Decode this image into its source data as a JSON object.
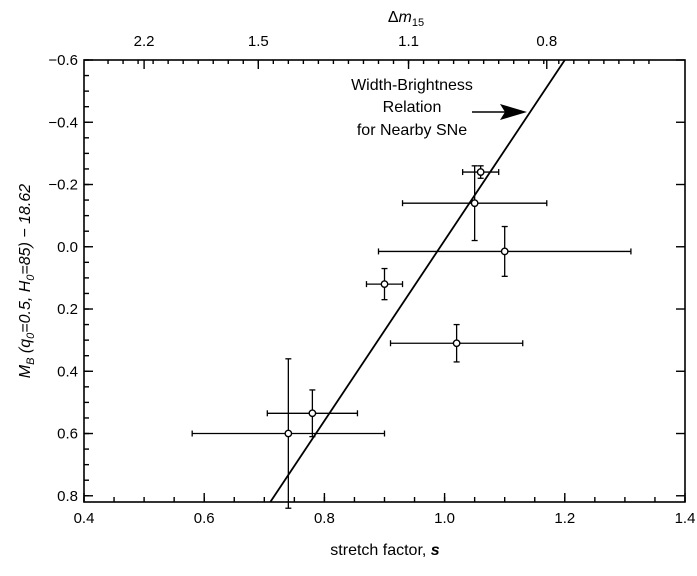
{
  "chart_data": {
    "type": "scatter",
    "title": "",
    "xlabel": {
      "text": "stretch factor, ",
      "var": "s"
    },
    "ylabel": {
      "m": "M",
      "m_sub": "B",
      "open": " (q",
      "q_sub": "0",
      "q_val": "=0.5, H",
      "h_sub": "0",
      "h_val": "=85) − 18.62"
    },
    "top_axis_label": {
      "delta": "Δ",
      "var": "m",
      "sub": "15"
    },
    "xlim": [
      0.4,
      1.4
    ],
    "ylim": [
      0.82,
      -0.6
    ],
    "x_ticks": [
      "0.4",
      "0.6",
      "0.8",
      "1.0",
      "1.2",
      "1.4"
    ],
    "x_tick_values": [
      0.4,
      0.6,
      0.8,
      1.0,
      1.2,
      1.4
    ],
    "y_ticks": [
      "−0.6",
      "−0.4",
      "−0.2",
      "0.0",
      "0.2",
      "0.4",
      "0.6",
      "0.8"
    ],
    "y_tick_values": [
      -0.6,
      -0.4,
      -0.2,
      0.0,
      0.2,
      0.4,
      0.6,
      0.8
    ],
    "top_ticks": [
      {
        "label": "2.2",
        "x": 0.5
      },
      {
        "label": "1.5",
        "x": 0.69
      },
      {
        "label": "1.1",
        "x": 0.94
      },
      {
        "label": "0.8",
        "x": 1.17
      }
    ],
    "points": [
      {
        "x": 1.06,
        "y": -0.24,
        "xerr": 0.03,
        "yerr": 0.02
      },
      {
        "x": 1.05,
        "y": -0.14,
        "xerr": 0.12,
        "yerr": 0.12
      },
      {
        "x": 1.1,
        "y": 0.015,
        "xerr": 0.21,
        "yerr": 0.08
      },
      {
        "x": 0.9,
        "y": 0.12,
        "xerr": 0.03,
        "yerr": 0.05
      },
      {
        "x": 1.02,
        "y": 0.31,
        "xerr": 0.11,
        "yerr": 0.06
      },
      {
        "x": 0.78,
        "y": 0.535,
        "xerr": 0.075,
        "yerr": 0.075
      },
      {
        "x": 0.74,
        "y": 0.6,
        "xerr": 0.16,
        "yerr": 0.24
      }
    ],
    "relation_line": {
      "x": [
        0.71,
        1.2
      ],
      "y": [
        0.82,
        -0.6
      ]
    },
    "annotation": [
      "Width-Brightness",
      "Relation",
      "for Nearby SNe"
    ],
    "grid": false,
    "legend": "none"
  }
}
